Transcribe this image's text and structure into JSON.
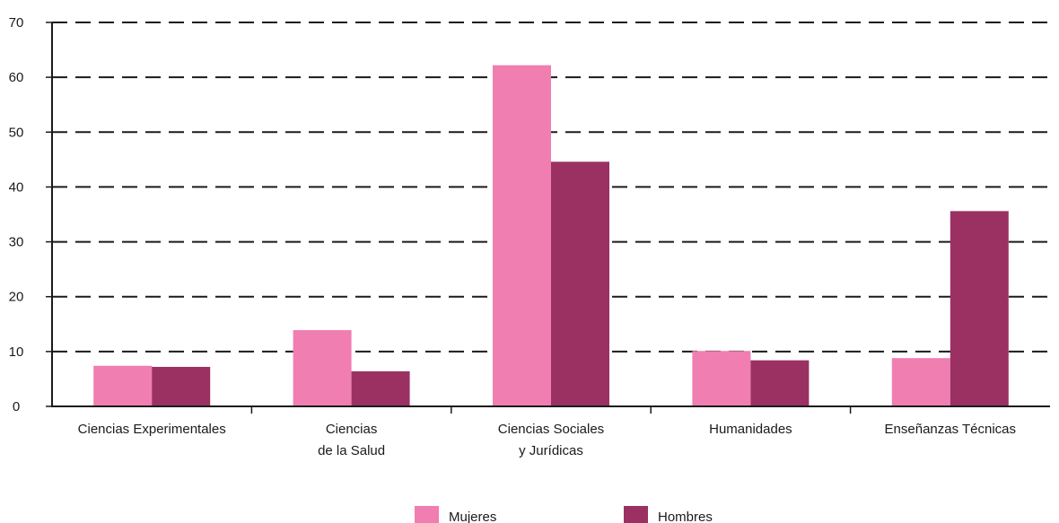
{
  "chart_data": {
    "type": "bar",
    "categories": [
      [
        "Ciencias Experimentales"
      ],
      [
        "Ciencias",
        "de la Salud"
      ],
      [
        "Ciencias Sociales",
        "y Jurídicas"
      ],
      [
        "Humanidades"
      ],
      [
        "Enseñanzas Técnicas"
      ]
    ],
    "series": [
      {
        "name": "Mujeres",
        "color": "#f07eb0",
        "values": [
          7.4,
          13.9,
          62.2,
          10.1,
          8.8
        ]
      },
      {
        "name": "Hombres",
        "color": "#9b3163",
        "values": [
          7.2,
          6.4,
          44.6,
          8.4,
          35.6
        ]
      }
    ],
    "legend": {
      "position": "bottom",
      "items": [
        "Mujeres",
        "Hombres"
      ]
    },
    "ylim": [
      0,
      70
    ],
    "yticks": [
      0,
      10,
      20,
      30,
      40,
      50,
      60,
      70
    ],
    "grid": "dashed-horizontal",
    "title": "",
    "xlabel": "",
    "ylabel": ""
  }
}
